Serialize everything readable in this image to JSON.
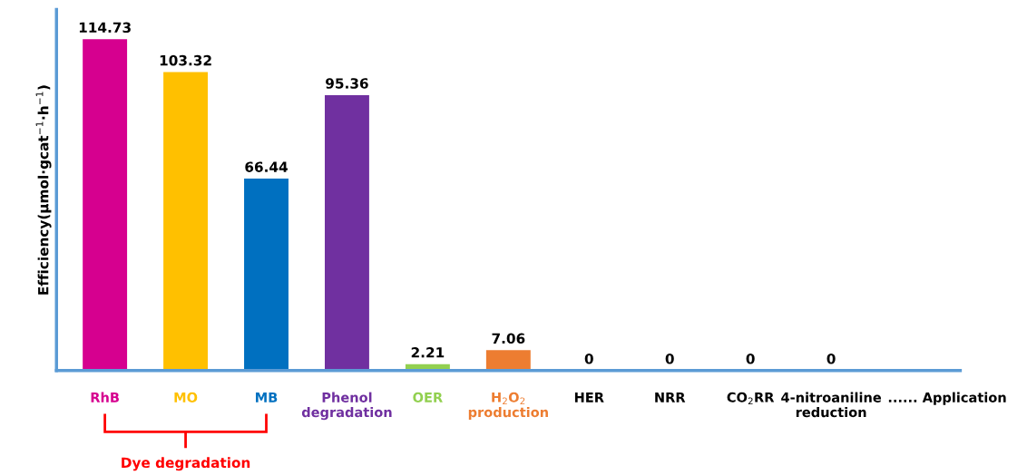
{
  "chart_data": {
    "type": "bar",
    "ylabel": "Efficiency(μmol·gcat$^{−1}$·h$^{−1}$)",
    "categories": [
      "RhB",
      "MO",
      "MB",
      "Phenol\ndegradation",
      "OER",
      "H$_{2}$O$_{2}$\nproduction",
      "HER",
      "NRR",
      "CO$_{2}$RR",
      "4-nitroaniline\nreduction",
      "...... Application"
    ],
    "values": [
      114.73,
      103.32,
      66.44,
      95.36,
      2.21,
      7.06,
      0,
      0,
      0,
      0,
      null
    ],
    "colors": [
      "#d6008f",
      "#ffc000",
      "#0070c0",
      "#7030a0",
      "#92d050",
      "#ed7d31",
      "#000000",
      "#000000",
      "#000000",
      "#000000",
      "#000000"
    ],
    "data_labels": true,
    "ylim": [
      0,
      125
    ],
    "tick_labels": "x",
    "grid": false,
    "annotations": [
      "Dye degradation"
    ]
  }
}
